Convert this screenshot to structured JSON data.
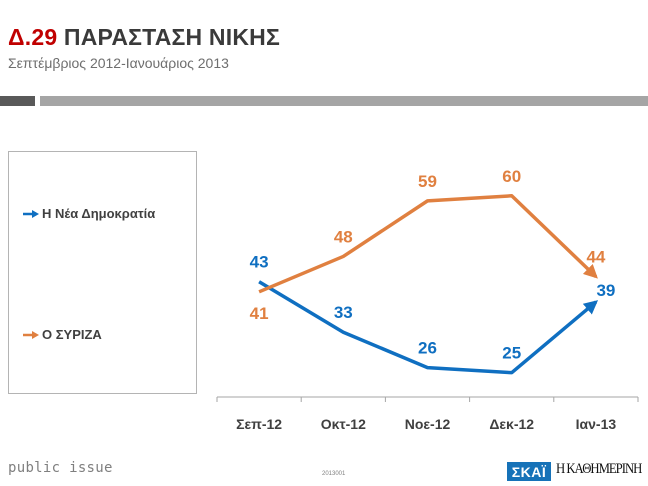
{
  "header": {
    "code": "Δ.29",
    "title": "ΠΑΡΑΣΤΑΣΗ ΝΙΚΗΣ",
    "subtitle": "Σεπτέμβριος 2012-Ιανουάριος 2013"
  },
  "colors": {
    "title_code": "#c00000",
    "nd": "#0f6fc1",
    "syriza": "#e08040",
    "axis": "#a6a6a6"
  },
  "legend": {
    "items": [
      {
        "label": "Η Νέα Δημοκρατία",
        "color": "#0f6fc1",
        "icon": "arrow-right-icon"
      },
      {
        "label": "Ο ΣΥΡΙΖΑ",
        "color": "#e08040",
        "icon": "arrow-right-icon"
      }
    ]
  },
  "chart_data": {
    "type": "line",
    "title": "ΠΑΡΑΣΤΑΣΗ ΝΙΚΗΣ",
    "subtitle": "Σεπτέμβριος 2012-Ιανουάριος 2013",
    "xlabel": "",
    "ylabel": "",
    "categories": [
      "Σεπ-12",
      "Οκτ-12",
      "Νοε-12",
      "Δεκ-12",
      "Ιαν-13"
    ],
    "series": [
      {
        "name": "Η Νέα Δημοκρατία",
        "color": "#0f6fc1",
        "values": [
          43,
          33,
          26,
          25,
          39
        ],
        "label_position": [
          "above",
          "above",
          "above",
          "above",
          "right"
        ]
      },
      {
        "name": "Ο ΣΥΡΙΖΑ",
        "color": "#e08040",
        "values": [
          41,
          48,
          59,
          60,
          44
        ],
        "label_position": [
          "below",
          "above",
          "above",
          "above",
          "above"
        ]
      }
    ],
    "ylim": [
      0,
      75
    ],
    "grid": false,
    "legend": "left",
    "end_marker": "arrow"
  },
  "footer": {
    "brand": "public issue",
    "code": "2013001",
    "logo_tv": "ΣΚΑΪ",
    "logo_paper": "Η ΚΑΘΗΜΕΡΙΝΗ"
  }
}
